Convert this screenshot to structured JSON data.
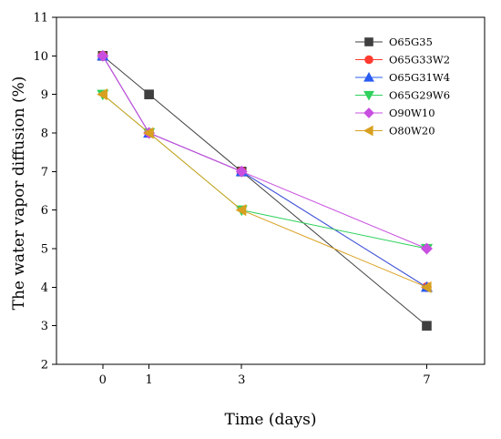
{
  "chart_data": {
    "type": "line",
    "xlabel": "Time (days)",
    "ylabel": "The water vapor diffusion (%)",
    "x_ticks": [
      0,
      1,
      3,
      7
    ],
    "y_ticks": [
      2,
      3,
      4,
      5,
      6,
      7,
      8,
      9,
      10,
      11
    ],
    "xlim": [
      -1,
      8.25
    ],
    "ylim": [
      2,
      11
    ],
    "grid": false,
    "legend_position": "top-right",
    "series": [
      {
        "name": "O65G35",
        "color": "#3f3f3f",
        "marker": "square",
        "x": [
          0,
          1,
          3,
          7
        ],
        "y": [
          10,
          9,
          7,
          3
        ]
      },
      {
        "name": "O65G33W2",
        "color": "#ff3b30",
        "marker": "circle",
        "x": [
          0,
          1,
          3,
          7
        ],
        "y": [
          10,
          8,
          7,
          4
        ]
      },
      {
        "name": "O65G31W4",
        "color": "#2a5cf2",
        "marker": "triangle-up",
        "x": [
          0,
          1,
          3,
          7
        ],
        "y": [
          10,
          8,
          7,
          4
        ]
      },
      {
        "name": "O65G29W6",
        "color": "#2fd15c",
        "marker": "triangle-down",
        "x": [
          0,
          1,
          3,
          7
        ],
        "y": [
          9,
          8,
          6,
          5
        ]
      },
      {
        "name": "O90W10",
        "color": "#c84fe0",
        "marker": "diamond",
        "x": [
          0,
          1,
          3,
          7
        ],
        "y": [
          10,
          8,
          7,
          5
        ]
      },
      {
        "name": "O80W20",
        "color": "#d8a020",
        "marker": "triangle-left",
        "x": [
          0,
          1,
          3,
          7
        ],
        "y": [
          9,
          8,
          6,
          4
        ]
      }
    ]
  }
}
